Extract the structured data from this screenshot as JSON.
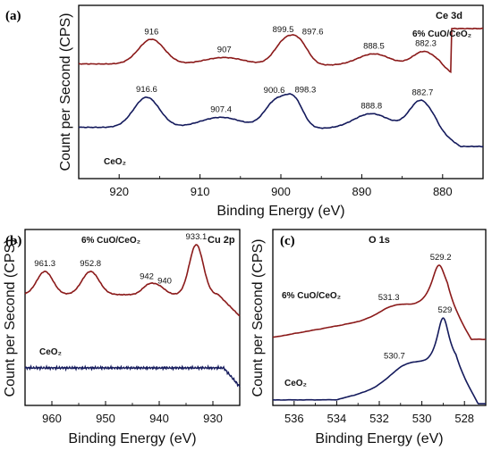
{
  "chart_data": [
    {
      "type": "line",
      "panel": "(a)",
      "corner_title": "Ce 3d",
      "xlabel": "Binding Energy (eV)",
      "ylabel": "Count per Second (CPS)",
      "xlim": [
        925,
        875
      ],
      "xticks": [
        920,
        910,
        900,
        890,
        880
      ],
      "grid": false,
      "series": [
        {
          "name": "6% CuO/CeO₂",
          "color": "#8b1a1a",
          "peaks": [
            916,
            907,
            899.5,
            897.6,
            888.5,
            882.3
          ],
          "labels": [
            "916",
            "907",
            "899.5",
            "897.6",
            "888.5",
            "882.3"
          ]
        },
        {
          "name": "CeO₂",
          "color": "#141a5c",
          "peaks": [
            916.6,
            907.4,
            900.6,
            898.3,
            888.8,
            882.7
          ],
          "labels": [
            "916.6",
            "907.4",
            "900.6",
            "898.3",
            "888.8",
            "882.7"
          ]
        }
      ]
    },
    {
      "type": "line",
      "panel": "(b)",
      "corner_title": "Cu 2p",
      "xlabel": "Binding Energy (eV)",
      "ylabel": "Count per Second (CPS)",
      "xlim": [
        965,
        925
      ],
      "xticks": [
        960,
        950,
        940,
        930
      ],
      "grid": false,
      "series": [
        {
          "name": "6% CuO/CeO₂",
          "color": "#8b1a1a",
          "peaks": [
            961.3,
            952.8,
            942,
            940,
            933.1
          ],
          "labels": [
            "961.3",
            "952.8",
            "942",
            "940",
            "933.1"
          ]
        },
        {
          "name": "CeO₂",
          "color": "#141a5c",
          "peaks": [],
          "labels": []
        }
      ]
    },
    {
      "type": "line",
      "panel": "(c)",
      "corner_title": "O 1s",
      "xlabel": "Binding Energy (eV)",
      "ylabel": "Count per Second (CPS)",
      "xlim": [
        537,
        527
      ],
      "xticks": [
        536,
        534,
        532,
        530,
        528
      ],
      "grid": false,
      "series": [
        {
          "name": "6% CuO/CeO₂",
          "color": "#8b1a1a",
          "peaks": [
            531.3,
            529.2
          ],
          "labels": [
            "531.3",
            "529.2"
          ]
        },
        {
          "name": "CeO₂",
          "color": "#141a5c",
          "peaks": [
            530.7,
            529
          ],
          "labels": [
            "530.7",
            "529"
          ]
        }
      ]
    }
  ]
}
